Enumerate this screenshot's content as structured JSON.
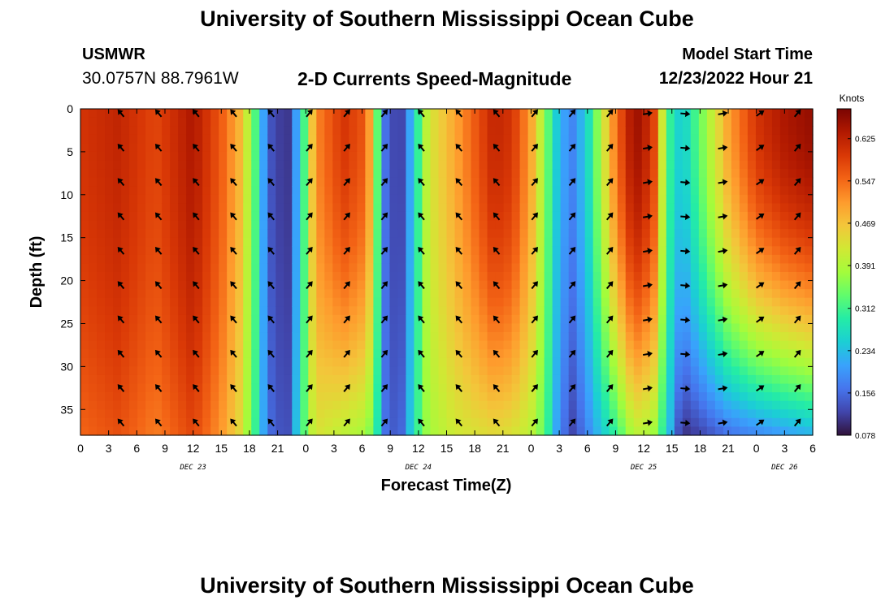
{
  "header": {
    "title": "University of Southern Mississippi Ocean Cube",
    "station": "USMWR",
    "coords": "30.0757N  88.7961W",
    "subtitle": "2-D Currents Speed-Magnitude",
    "model_start_label": "Model Start Time",
    "model_start_value": "12/23/2022 Hour 21"
  },
  "footer": {
    "title": "University of Southern Mississippi Ocean Cube"
  },
  "colors": {
    "colormap": [
      "#30123b",
      "#4145ab",
      "#4675ed",
      "#39a2fc",
      "#1bcfd4",
      "#24eca6",
      "#61fc6c",
      "#a4fc3b",
      "#d1e834",
      "#f3c63a",
      "#fe9b2d",
      "#f36315",
      "#d93806",
      "#b11901",
      "#7a0402"
    ]
  },
  "chart_data": {
    "type": "heatmap",
    "xlabel": "Forecast Time(Z)",
    "ylabel": "Depth (ft)",
    "x_tick_labels": [
      "0",
      "3",
      "6",
      "9",
      "12",
      "15",
      "18",
      "21",
      "0",
      "3",
      "6",
      "9",
      "12",
      "15",
      "18",
      "21",
      "0",
      "3",
      "6",
      "9",
      "12",
      "15",
      "18",
      "21",
      "0",
      "3",
      "6"
    ],
    "x_tick_hours": [
      0,
      3,
      6,
      9,
      12,
      15,
      18,
      21,
      24,
      27,
      30,
      33,
      36,
      39,
      42,
      45,
      48,
      51,
      54,
      57,
      60,
      63,
      66,
      69,
      72,
      75,
      78
    ],
    "date_labels": [
      {
        "text": "DEC 23",
        "hour": 12
      },
      {
        "text": "DEC 24",
        "hour": 36
      },
      {
        "text": "DEC 25",
        "hour": 60
      },
      {
        "text": "DEC 26",
        "hour": 75
      }
    ],
    "y_tick_labels": [
      "0",
      "5",
      "10",
      "15",
      "20",
      "25",
      "30",
      "35"
    ],
    "y_tick_values": [
      0,
      5,
      10,
      15,
      20,
      25,
      30,
      35
    ],
    "xlim": [
      0,
      78
    ],
    "ylim": [
      0,
      38
    ],
    "colorbar": {
      "units": "Knots",
      "ticks": [
        "0.625",
        "0.547",
        "0.469",
        "0.391",
        "0.312",
        "0.234",
        "0.156",
        "0.078"
      ],
      "tick_values": [
        0.625,
        0.547,
        0.469,
        0.391,
        0.312,
        0.234,
        0.156,
        0.078
      ],
      "range": [
        0.078,
        0.68
      ]
    },
    "speed_profiles": [
      {
        "hour": 0,
        "top": 0.6,
        "bottom": 0.55
      },
      {
        "hour": 4,
        "top": 0.62,
        "bottom": 0.57
      },
      {
        "hour": 8,
        "top": 0.58,
        "bottom": 0.53
      },
      {
        "hour": 12,
        "top": 0.64,
        "bottom": 0.58
      },
      {
        "hour": 15,
        "top": 0.56,
        "bottom": 0.51
      },
      {
        "hour": 17,
        "top": 0.48,
        "bottom": 0.44
      },
      {
        "hour": 18.5,
        "top": 0.34,
        "bottom": 0.32
      },
      {
        "hour": 20,
        "top": 0.14,
        "bottom": 0.16
      },
      {
        "hour": 22,
        "top": 0.1,
        "bottom": 0.12
      },
      {
        "hour": 23.5,
        "top": 0.26,
        "bottom": 0.3
      },
      {
        "hour": 25,
        "top": 0.52,
        "bottom": 0.43
      },
      {
        "hour": 28,
        "top": 0.6,
        "bottom": 0.4
      },
      {
        "hour": 30.5,
        "top": 0.56,
        "bottom": 0.38
      },
      {
        "hour": 31.5,
        "top": 0.36,
        "bottom": 0.3
      },
      {
        "hour": 32.5,
        "top": 0.16,
        "bottom": 0.16
      },
      {
        "hour": 34,
        "top": 0.1,
        "bottom": 0.13
      },
      {
        "hour": 35.5,
        "top": 0.25,
        "bottom": 0.28
      },
      {
        "hour": 37,
        "top": 0.42,
        "bottom": 0.38
      },
      {
        "hour": 40,
        "top": 0.5,
        "bottom": 0.42
      },
      {
        "hour": 44,
        "top": 0.62,
        "bottom": 0.44
      },
      {
        "hour": 46,
        "top": 0.6,
        "bottom": 0.43
      },
      {
        "hour": 48,
        "top": 0.5,
        "bottom": 0.4
      },
      {
        "hour": 49.5,
        "top": 0.36,
        "bottom": 0.33
      },
      {
        "hour": 51,
        "top": 0.22,
        "bottom": 0.18
      },
      {
        "hour": 52.5,
        "top": 0.18,
        "bottom": 0.12
      },
      {
        "hour": 54,
        "top": 0.26,
        "bottom": 0.18
      },
      {
        "hour": 57,
        "top": 0.54,
        "bottom": 0.3
      },
      {
        "hour": 59,
        "top": 0.66,
        "bottom": 0.4
      },
      {
        "hour": 61,
        "top": 0.6,
        "bottom": 0.38
      },
      {
        "hour": 62.5,
        "top": 0.32,
        "bottom": 0.26
      },
      {
        "hour": 64,
        "top": 0.24,
        "bottom": 0.1
      },
      {
        "hour": 66,
        "top": 0.34,
        "bottom": 0.12
      },
      {
        "hour": 69,
        "top": 0.5,
        "bottom": 0.16
      },
      {
        "hour": 72,
        "top": 0.6,
        "bottom": 0.18
      },
      {
        "hour": 75,
        "top": 0.64,
        "bottom": 0.2
      },
      {
        "hour": 78,
        "top": 0.66,
        "bottom": 0.22
      }
    ],
    "arrow_hours": [
      4,
      8,
      12,
      16,
      20,
      24,
      28,
      32,
      36,
      40,
      44,
      48,
      52,
      56,
      60,
      64,
      68,
      72,
      76
    ],
    "arrow_depths": [
      0,
      4,
      8,
      12,
      16,
      20,
      24,
      28,
      32,
      36
    ],
    "arrow_angles": [
      -40,
      -40,
      -40,
      -40,
      -40,
      40,
      40,
      40,
      -40,
      -40,
      -40,
      40,
      40,
      40,
      80,
      95,
      80,
      55,
      40
    ]
  }
}
